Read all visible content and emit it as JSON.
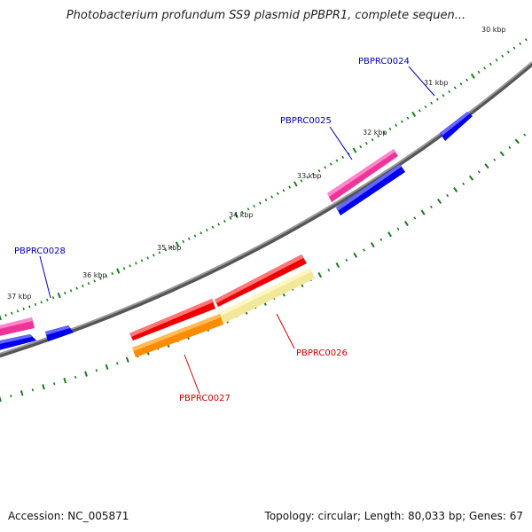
{
  "title": "Photobacterium profundum SS9 plasmid pPBPR1, complete sequen...",
  "footer": {
    "accession": "Accession: NC_005871",
    "stats": "Topology: circular; Length: 80,033 bp; Genes: 67"
  },
  "ticks": [
    {
      "label": "30 kbp"
    },
    {
      "label": "31 kbp"
    },
    {
      "label": "32 kbp"
    },
    {
      "label": "33 kbp"
    },
    {
      "label": "34 kbp"
    },
    {
      "label": "35 kbp"
    },
    {
      "label": "36 kbp"
    },
    {
      "label": "37 kbp"
    }
  ],
  "gene_labels": [
    {
      "id": "g24",
      "label": "PBPRC0024",
      "color": "#0000aa"
    },
    {
      "id": "g25",
      "label": "PBPRC0025",
      "color": "#0000aa"
    },
    {
      "id": "g28",
      "label": "PBPRC0028",
      "color": "#0000aa"
    },
    {
      "id": "g26",
      "label": "PBPRC0026",
      "color": "#cc0000"
    },
    {
      "id": "g27",
      "label": "PBPRC0027",
      "color": "#cc0000"
    }
  ],
  "colors": {
    "backbone": "#888888",
    "tick": "#1a7a1a",
    "forward_cds": "#0000ee",
    "reverse_cds": "#ee0000",
    "rna": "#ee3399",
    "orange_feature": "#ff8c00",
    "yellow_feature": "#f2e89a"
  }
}
